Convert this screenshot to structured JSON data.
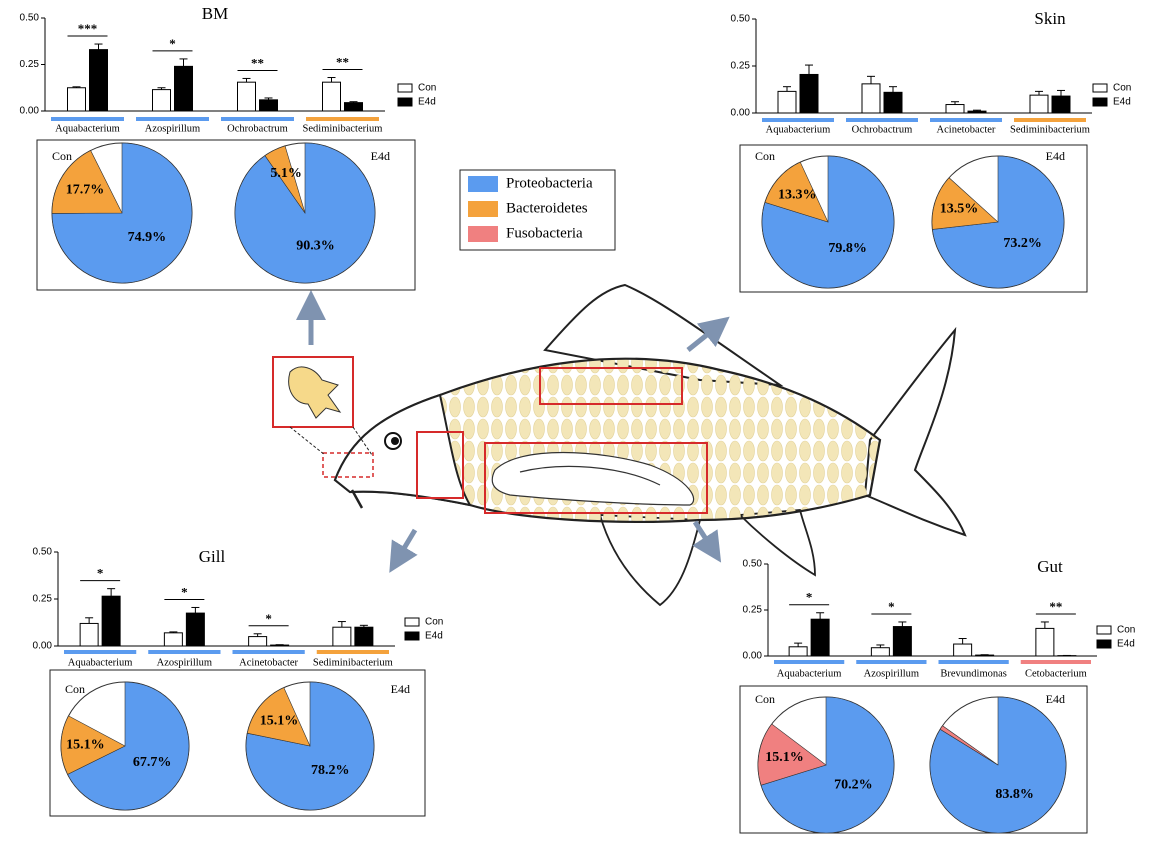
{
  "legend": {
    "items": [
      {
        "name": "Proteobacteria",
        "color": "#5b9bef"
      },
      {
        "name": "Bacteroidetes",
        "color": "#f4a23c"
      },
      {
        "name": "Fusobacteria",
        "color": "#f08080"
      }
    ]
  },
  "chart_data": [
    {
      "type": "bar",
      "title": "BM",
      "categories": [
        "Aquabacterium",
        "Azospirillum",
        "Ochrobactrum",
        "Sediminibacterium"
      ],
      "group_colors": [
        "#5b9bef",
        "#5b9bef",
        "#5b9bef",
        "#f4a23c"
      ],
      "series": [
        {
          "name": "Con",
          "color": "#ffffff",
          "values": [
            0.125,
            0.115,
            0.155,
            0.155
          ],
          "errors": [
            0.005,
            0.01,
            0.02,
            0.025
          ]
        },
        {
          "name": "E4d",
          "color": "#000000",
          "values": [
            0.33,
            0.24,
            0.06,
            0.045
          ],
          "errors": [
            0.03,
            0.04,
            0.01,
            0.005
          ]
        }
      ],
      "significance": [
        "***",
        "*",
        "**",
        "**"
      ],
      "ylim": [
        0,
        0.5
      ],
      "yticks": [
        {
          "value": 0,
          "label": "0.00"
        },
        {
          "value": 0.25,
          "label": "0.25"
        },
        {
          "value": 0.5,
          "label": "0.50"
        }
      ]
    },
    {
      "type": "pie",
      "title": "Con",
      "values": [
        74.9,
        17.7,
        null
      ],
      "value_labels": [
        "74.9%",
        "17.7%",
        null
      ]
    },
    {
      "type": "pie",
      "title": "E4d",
      "values": [
        90.3,
        5.1,
        null
      ],
      "value_labels": [
        "90.3%",
        "5.1%",
        null
      ]
    },
    {
      "type": "bar",
      "title": "Skin",
      "categories": [
        "Aquabacterium",
        "Ochrobactrum",
        "Acinetobacter",
        "Sediminibacterium"
      ],
      "group_colors": [
        "#5b9bef",
        "#5b9bef",
        "#5b9bef",
        "#f4a23c"
      ],
      "series": [
        {
          "name": "Con",
          "color": "#ffffff",
          "values": [
            0.115,
            0.155,
            0.045,
            0.095
          ],
          "errors": [
            0.025,
            0.04,
            0.015,
            0.02
          ]
        },
        {
          "name": "E4d",
          "color": "#000000",
          "values": [
            0.205,
            0.11,
            0.01,
            0.09
          ],
          "errors": [
            0.05,
            0.03,
            0.005,
            0.03
          ]
        }
      ],
      "significance": [
        null,
        null,
        null,
        null
      ],
      "ylim": [
        0,
        0.5
      ],
      "yticks": [
        {
          "value": 0,
          "label": "0.00"
        },
        {
          "value": 0.25,
          "label": "0.25"
        },
        {
          "value": 0.5,
          "label": "0.50"
        }
      ]
    },
    {
      "type": "pie",
      "title": "Con",
      "values": [
        79.8,
        13.3,
        null
      ],
      "value_labels": [
        "79.8%",
        "13.3%",
        null
      ]
    },
    {
      "type": "pie",
      "title": "E4d",
      "values": [
        73.2,
        13.5,
        null
      ],
      "value_labels": [
        "73.2%",
        "13.5%",
        null
      ]
    },
    {
      "type": "bar",
      "title": "Gill",
      "categories": [
        "Aquabacterium",
        "Azospirillum",
        "Acinetobacter",
        "Sediminibacterium"
      ],
      "group_colors": [
        "#5b9bef",
        "#5b9bef",
        "#5b9bef",
        "#f4a23c"
      ],
      "series": [
        {
          "name": "Con",
          "color": "#ffffff",
          "values": [
            0.12,
            0.07,
            0.05,
            0.1
          ],
          "errors": [
            0.03,
            0.005,
            0.015,
            0.03
          ]
        },
        {
          "name": "E4d",
          "color": "#000000",
          "values": [
            0.265,
            0.175,
            0.005,
            0.1
          ],
          "errors": [
            0.04,
            0.03,
            0.002,
            0.01
          ]
        }
      ],
      "significance": [
        "*",
        "*",
        "*",
        null
      ],
      "ylim": [
        0,
        0.5
      ],
      "yticks": [
        {
          "value": 0,
          "label": "0.00"
        },
        {
          "value": 0.25,
          "label": "0.25"
        },
        {
          "value": 0.5,
          "label": "0.50"
        }
      ]
    },
    {
      "type": "pie",
      "title": "Con",
      "values": [
        67.7,
        15.1,
        null
      ],
      "value_labels": [
        "67.7%",
        "15.1%",
        null
      ]
    },
    {
      "type": "pie",
      "title": "E4d",
      "values": [
        78.2,
        15.1,
        null
      ],
      "value_labels": [
        "78.2%",
        "15.1%",
        null
      ]
    },
    {
      "type": "bar",
      "title": "Gut",
      "categories": [
        "Aquabacterium",
        "Azospirillum",
        "Brevundimonas",
        "Cetobacterium"
      ],
      "group_colors": [
        "#5b9bef",
        "#5b9bef",
        "#5b9bef",
        "#f08080"
      ],
      "series": [
        {
          "name": "Con",
          "color": "#ffffff",
          "values": [
            0.05,
            0.045,
            0.065,
            0.15
          ],
          "errors": [
            0.02,
            0.015,
            0.03,
            0.035
          ]
        },
        {
          "name": "E4d",
          "color": "#000000",
          "values": [
            0.2,
            0.16,
            0.005,
            0.002
          ],
          "errors": [
            0.035,
            0.025,
            0.002,
            0.001
          ]
        }
      ],
      "significance": [
        "*",
        "*",
        null,
        "**"
      ],
      "ylim": [
        0,
        0.5
      ],
      "yticks": [
        {
          "value": 0,
          "label": "0.00"
        },
        {
          "value": 0.25,
          "label": "0.25"
        },
        {
          "value": 0.5,
          "label": "0.50"
        }
      ]
    },
    {
      "type": "pie",
      "title": "Con",
      "values": [
        70.2,
        null,
        15.1
      ],
      "value_labels": [
        "70.2%",
        null,
        "15.1%"
      ]
    },
    {
      "type": "pie",
      "title": "E4d",
      "values": [
        83.8,
        null,
        1
      ],
      "value_labels": [
        "83.8%",
        null,
        null
      ]
    }
  ]
}
